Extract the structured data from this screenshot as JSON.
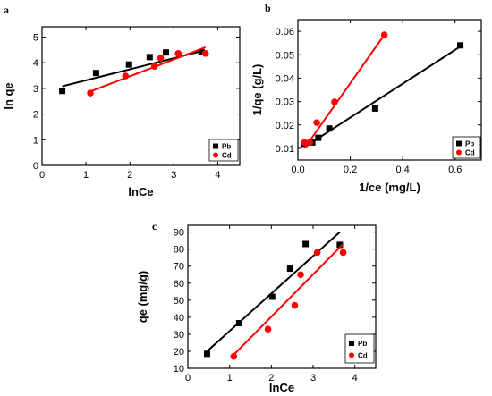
{
  "chart_data": [
    {
      "panel": "a",
      "type": "scatter",
      "xlabel": "lnCe",
      "ylabel": "ln qe",
      "xlim": [
        0,
        4.5
      ],
      "ylim": [
        0,
        5.4
      ],
      "xticks": [
        0,
        1,
        2,
        3,
        4
      ],
      "yticks": [
        0,
        1,
        2,
        3,
        4,
        5
      ],
      "legend_position": "bottom-right",
      "series": [
        {
          "name": "Pb",
          "color": "#000000",
          "marker": "square",
          "x": [
            0.46,
            1.23,
            1.98,
            2.45,
            2.82,
            3.63
          ],
          "y": [
            2.9,
            3.6,
            3.93,
            4.22,
            4.4,
            4.41
          ],
          "fit": [
            [
              0.46,
              3.08
            ],
            [
              3.7,
              4.48
            ]
          ]
        },
        {
          "name": "Cd",
          "color": "#ff0000",
          "marker": "circle",
          "x": [
            1.1,
            1.9,
            2.56,
            2.7,
            3.1,
            3.72
          ],
          "y": [
            2.82,
            3.48,
            3.86,
            4.18,
            4.36,
            4.36
          ],
          "fit": [
            [
              1.1,
              2.88
            ],
            [
              3.72,
              4.6
            ]
          ]
        }
      ]
    },
    {
      "panel": "b",
      "type": "scatter",
      "xlabel": "1/ce (mg/L)",
      "ylabel": "1/qe (g/L)",
      "xlim": [
        0,
        0.7
      ],
      "ylim": [
        0.005,
        0.065
      ],
      "xticks": [
        0.0,
        0.2,
        0.4,
        0.6
      ],
      "yticks": [
        0.01,
        0.02,
        0.03,
        0.04,
        0.05,
        0.06
      ],
      "xtick_labels": [
        "0.0",
        "0.2",
        "0.4",
        "0.6"
      ],
      "ytick_labels": [
        "0.01",
        "0.02",
        "0.03",
        "0.04",
        "0.05",
        "0.06"
      ],
      "legend_position": "bottom-right",
      "series": [
        {
          "name": "Pb",
          "color": "#000000",
          "marker": "square",
          "x": [
            0.025,
            0.055,
            0.078,
            0.12,
            0.295,
            0.62
          ],
          "y": [
            0.0115,
            0.0125,
            0.0145,
            0.0185,
            0.027,
            0.054
          ],
          "fit": [
            [
              0.025,
              0.0105
            ],
            [
              0.62,
              0.0535
            ]
          ]
        },
        {
          "name": "Cd",
          "color": "#ff0000",
          "marker": "circle",
          "x": [
            0.025,
            0.045,
            0.072,
            0.14,
            0.33
          ],
          "y": [
            0.0125,
            0.0125,
            0.021,
            0.0298,
            0.0585
          ],
          "fit": [
            [
              0.025,
              0.01
            ],
            [
              0.33,
              0.0585
            ]
          ]
        }
      ]
    },
    {
      "panel": "c",
      "type": "scatter",
      "xlabel": "lnCe",
      "ylabel": "qe (mg/g)",
      "xlim": [
        0,
        4.5
      ],
      "ylim": [
        10,
        94
      ],
      "xticks": [
        0,
        1,
        2,
        3,
        4
      ],
      "yticks": [
        10,
        20,
        30,
        40,
        50,
        60,
        70,
        80,
        90
      ],
      "legend_position": "bottom-right",
      "series": [
        {
          "name": "Pb",
          "color": "#000000",
          "marker": "square",
          "x": [
            0.46,
            1.23,
            2.02,
            2.45,
            2.82,
            3.64
          ],
          "y": [
            18.5,
            36.5,
            52,
            68.5,
            83,
            82.5
          ],
          "fit": [
            [
              0.46,
              20
            ],
            [
              3.64,
              90
            ]
          ]
        },
        {
          "name": "Cd",
          "color": "#ff0000",
          "marker": "circle",
          "x": [
            1.1,
            1.92,
            2.56,
            2.7,
            3.1,
            3.72
          ],
          "y": [
            17,
            33,
            47,
            65,
            78,
            78
          ],
          "fit": [
            [
              1.1,
              18
            ],
            [
              3.72,
              83
            ]
          ]
        }
      ]
    }
  ]
}
